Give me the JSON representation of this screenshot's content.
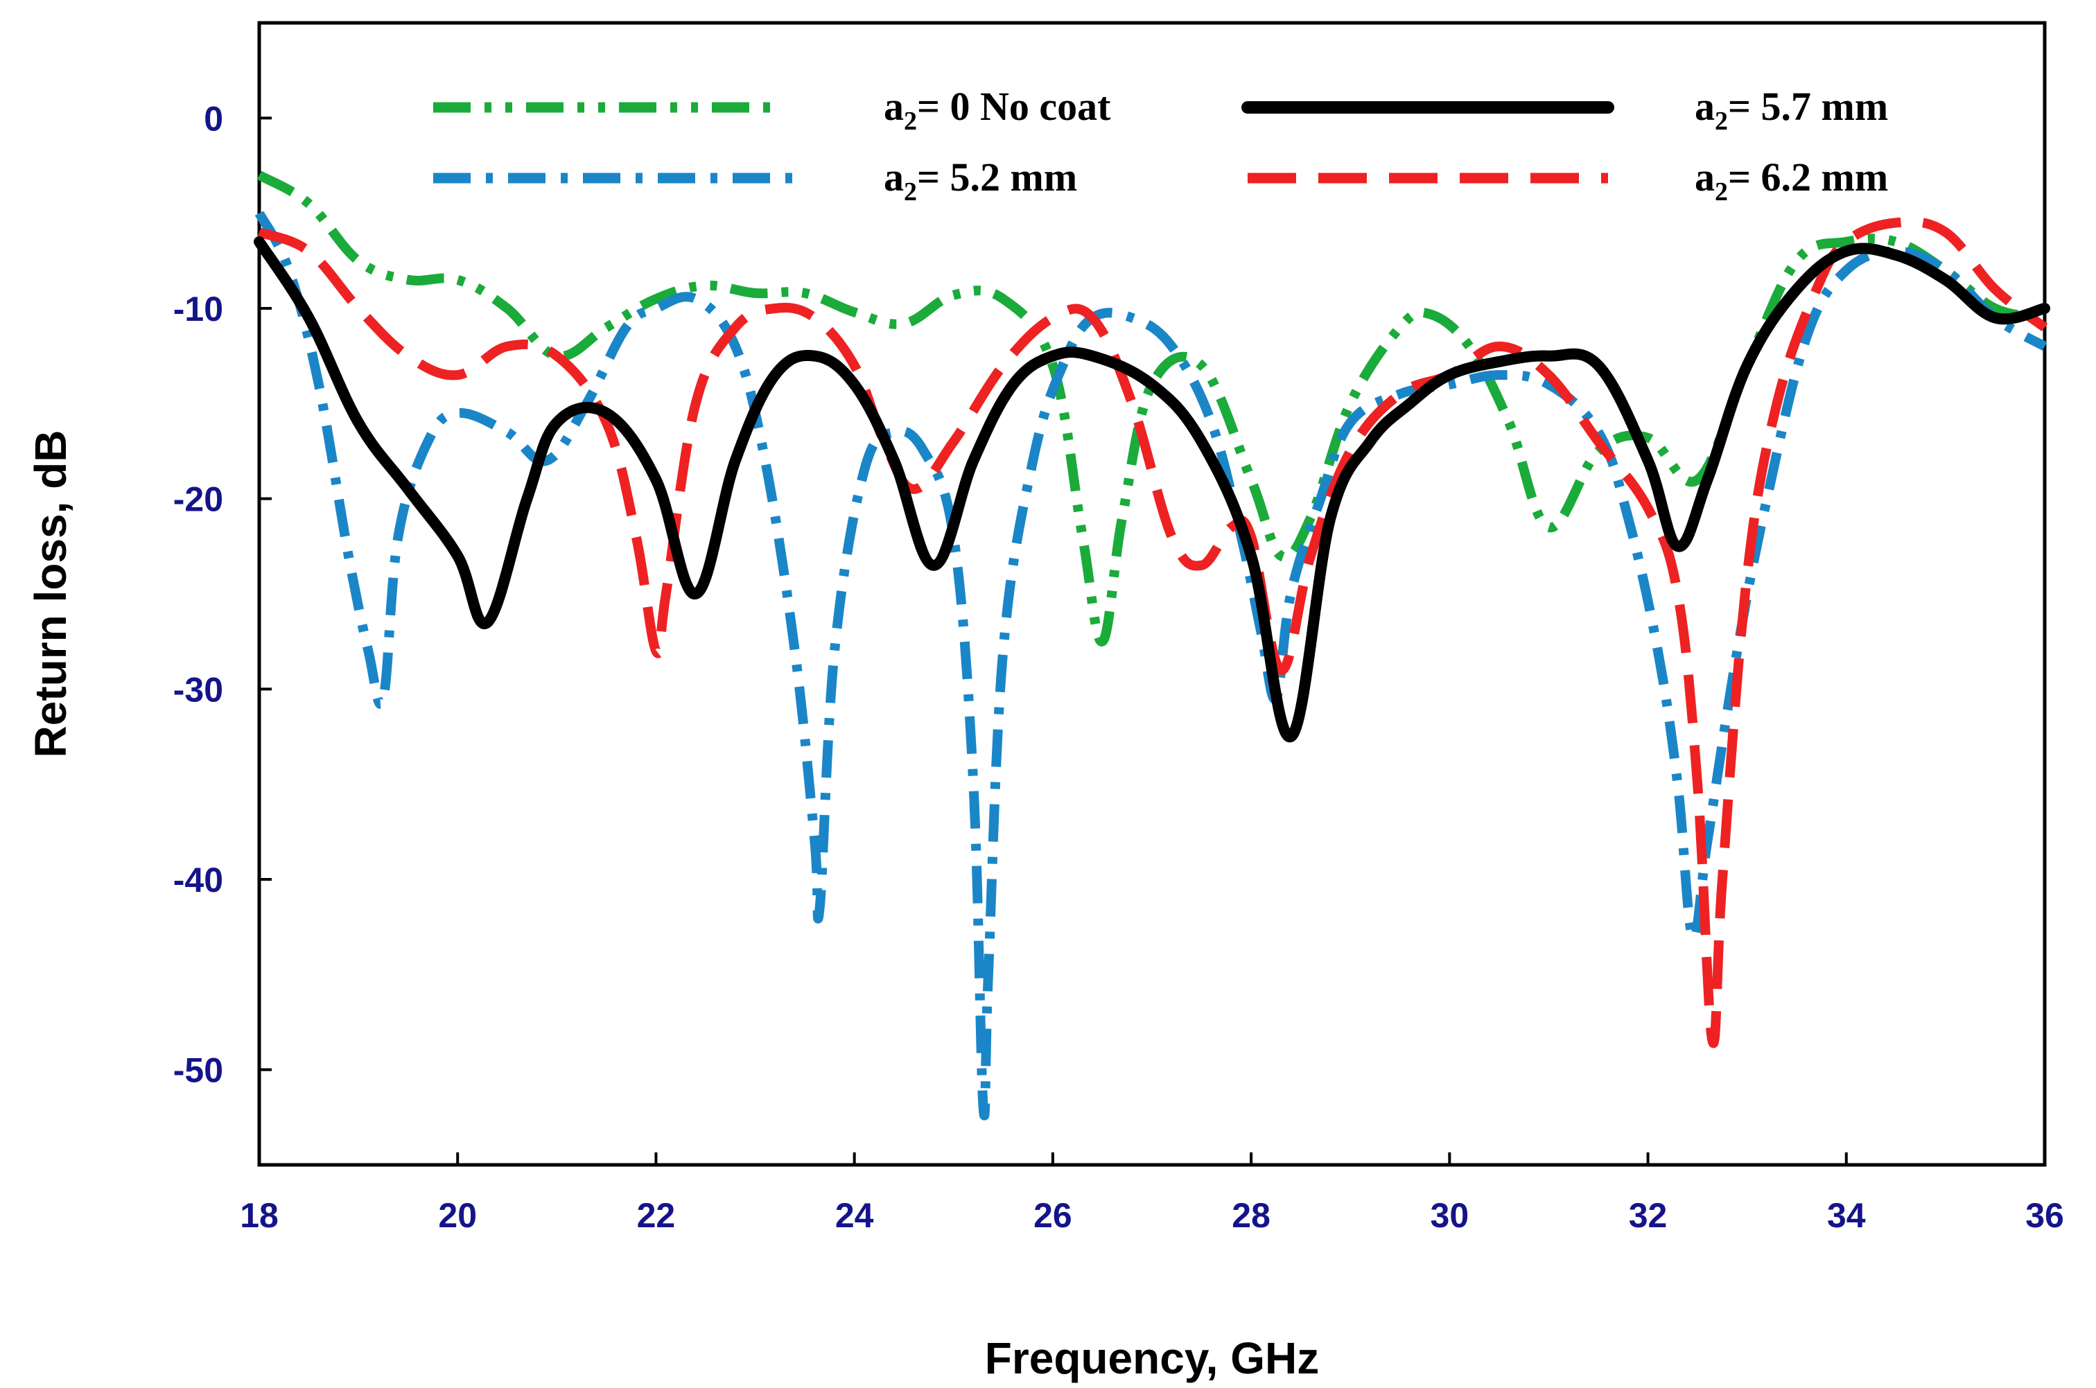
{
  "chart_data": {
    "type": "line",
    "title": "",
    "xlabel": "Frequency, GHz",
    "ylabel": "Return loss, dB",
    "xlim": [
      18,
      36
    ],
    "ylim": [
      -55,
      5
    ],
    "xticks": [
      "18",
      "20",
      "22",
      "24",
      "26",
      "28",
      "30",
      "32",
      "34",
      "36"
    ],
    "xtick_values": [
      18,
      20,
      22,
      24,
      26,
      28,
      30,
      32,
      34,
      36
    ],
    "yticks": [
      "0",
      "-10",
      "-20",
      "-30",
      "-40",
      "-50"
    ],
    "ytick_values": [
      0,
      -10,
      -20,
      -30,
      -40,
      -50
    ],
    "grid": false,
    "legend_position": "top",
    "series": [
      {
        "name": "a2= 0 No coat",
        "legend_main": "a",
        "legend_sub": "2",
        "legend_rest": "= 0 No coat",
        "color": "#1aab3a",
        "style": "dash-dot-dot",
        "x": [
          18,
          18.5,
          19,
          19.5,
          20,
          20.5,
          21,
          21.5,
          22,
          22.5,
          23,
          23.5,
          24,
          24.5,
          25,
          25.5,
          26,
          26.3,
          26.5,
          26.7,
          27,
          27.5,
          28,
          28.3,
          28.6,
          29,
          29.5,
          29.8,
          30.2,
          30.6,
          31,
          31.5,
          32,
          32.5,
          33,
          33.5,
          34,
          34.5,
          35,
          35.5,
          36
        ],
        "y": [
          -3,
          -4.5,
          -7.5,
          -8.5,
          -8.5,
          -10,
          -12.5,
          -11,
          -9.5,
          -8.8,
          -9.2,
          -9.2,
          -10.2,
          -10.8,
          -9.3,
          -9.5,
          -13,
          -22,
          -27.5,
          -21,
          -14,
          -13,
          -19,
          -23,
          -21,
          -15,
          -11,
          -10.3,
          -12,
          -16,
          -21.5,
          -17.5,
          -16.8,
          -19,
          -13,
          -7.5,
          -6.5,
          -6.5,
          -8,
          -10,
          -10.5
        ]
      },
      {
        "name": "a2= 5.7 mm",
        "legend_main": "a",
        "legend_sub": "2",
        "legend_rest": "= 5.7 mm",
        "color": "#000000",
        "style": "solid",
        "x": [
          18,
          18.5,
          19,
          19.5,
          20,
          20.3,
          20.7,
          21,
          21.5,
          22,
          22.4,
          22.8,
          23.2,
          23.6,
          24,
          24.4,
          24.8,
          25.2,
          25.6,
          26,
          26.4,
          27,
          27.5,
          28,
          28.4,
          28.8,
          29.2,
          29.6,
          30,
          30.5,
          31,
          31.5,
          32,
          32.3,
          32.6,
          33,
          33.5,
          34,
          34.5,
          35,
          35.5,
          36
        ],
        "y": [
          -6.5,
          -10.5,
          -16,
          -19.5,
          -23,
          -26.5,
          -20,
          -16,
          -15.5,
          -19,
          -25,
          -18,
          -13.5,
          -12.5,
          -14,
          -18,
          -23.5,
          -18,
          -14,
          -12.5,
          -12.5,
          -14,
          -17,
          -23,
          -32.5,
          -21,
          -17,
          -15,
          -13.5,
          -12.8,
          -12.5,
          -13,
          -18,
          -22.5,
          -19,
          -13,
          -9,
          -7,
          -7.2,
          -8.5,
          -10.5,
          -10
        ]
      },
      {
        "name": "a2= 5.2 mm",
        "legend_main": "a",
        "legend_sub": "2",
        "legend_rest": "= 5.2 mm",
        "color": "#1a86c8",
        "style": "dash-dot",
        "x": [
          18,
          18.3,
          18.6,
          18.9,
          19.1,
          19.25,
          19.4,
          19.7,
          20,
          20.5,
          20.9,
          21.3,
          21.7,
          22,
          22.4,
          22.8,
          23.1,
          23.4,
          23.6,
          23.65,
          23.8,
          24.1,
          24.4,
          24.7,
          25,
          25.2,
          25.3,
          25.35,
          25.5,
          25.8,
          26.1,
          26.4,
          26.8,
          27.2,
          27.6,
          27.9,
          28.1,
          28.25,
          28.4,
          28.7,
          29,
          29.5,
          30,
          30.5,
          31,
          31.5,
          31.8,
          32.1,
          32.3,
          32.45,
          32.6,
          32.9,
          33.2,
          33.6,
          34,
          34.5,
          35,
          35.5,
          36
        ],
        "y": [
          -5,
          -8,
          -14,
          -23,
          -28,
          -30.5,
          -22,
          -17,
          -15.5,
          -16.5,
          -18,
          -15,
          -11,
          -10,
          -9.5,
          -12,
          -18,
          -28,
          -38,
          -41.5,
          -28,
          -18.5,
          -16.5,
          -17.5,
          -22,
          -35,
          -52,
          -45,
          -28,
          -18,
          -13,
          -10.5,
          -10.5,
          -12,
          -16,
          -22,
          -27,
          -30.5,
          -25,
          -20,
          -16,
          -14.5,
          -14,
          -13.5,
          -14,
          -16.5,
          -21,
          -28,
          -35,
          -43,
          -38,
          -28,
          -20,
          -11.5,
          -8,
          -7,
          -8,
          -10.5,
          -12
        ]
      },
      {
        "name": "a2= 6.2 mm",
        "legend_main": "a",
        "legend_sub": "2",
        "legend_rest": "= 6.2 mm",
        "color": "#ee2222",
        "style": "dash",
        "x": [
          18,
          18.5,
          19,
          19.5,
          20,
          20.5,
          21,
          21.5,
          21.8,
          22,
          22.1,
          22.4,
          22.8,
          23.2,
          23.6,
          24,
          24.3,
          24.6,
          25,
          25.5,
          26,
          26.4,
          26.8,
          27.2,
          27.5,
          27.8,
          28,
          28.3,
          28.6,
          29,
          29.5,
          30,
          30.5,
          31,
          31.5,
          32,
          32.3,
          32.5,
          32.65,
          32.75,
          33,
          33.3,
          33.7,
          34,
          34.5,
          35,
          35.5,
          36
        ],
        "y": [
          -6,
          -7,
          -10,
          -12.5,
          -13.5,
          -12,
          -12.5,
          -16,
          -22,
          -28,
          -25,
          -15,
          -11,
          -10,
          -10.5,
          -13,
          -17,
          -19.5,
          -17,
          -13,
          -10.5,
          -10.5,
          -15,
          -22,
          -23.5,
          -21.5,
          -22,
          -29,
          -23,
          -17.5,
          -14.5,
          -13.5,
          -12,
          -13.5,
          -17,
          -20.5,
          -25,
          -35,
          -48.5,
          -40,
          -24,
          -15,
          -9,
          -6.5,
          -5.5,
          -6,
          -9,
          -11
        ]
      }
    ]
  }
}
